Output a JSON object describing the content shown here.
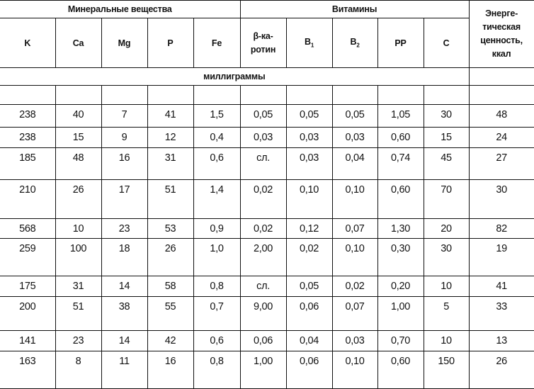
{
  "header": {
    "minerals": "Минеральные вещества",
    "vitamins": "Витамины",
    "energy": "Энерге-тическая ценность, ккал",
    "units": "миллиграммы",
    "columns": [
      {
        "label": "K"
      },
      {
        "label": "Ca"
      },
      {
        "label": "Mg"
      },
      {
        "label": "P"
      },
      {
        "label": "Fe"
      },
      {
        "label": "β-ка-ротин"
      },
      {
        "label": "B",
        "sub": "1"
      },
      {
        "label": "B",
        "sub": "2"
      },
      {
        "label": "PP"
      },
      {
        "label": "C"
      }
    ]
  },
  "rows": [
    [
      "238",
      "40",
      "7",
      "41",
      "1,5",
      "0,05",
      "0,05",
      "0,05",
      "1,05",
      "30",
      "48"
    ],
    [
      "238",
      "15",
      "9",
      "12",
      "0,4",
      "0,03",
      "0,03",
      "0,03",
      "0,60",
      "15",
      "24"
    ],
    [
      "185",
      "48",
      "16",
      "31",
      "0,6",
      "сл.",
      "0,03",
      "0,04",
      "0,74",
      "45",
      "27"
    ],
    [
      "210",
      "26",
      "17",
      "51",
      "1,4",
      "0,02",
      "0,10",
      "0,10",
      "0,60",
      "70",
      "30"
    ],
    [
      "568",
      "10",
      "23",
      "53",
      "0,9",
      "0,02",
      "0,12",
      "0,07",
      "1,30",
      "20",
      "82"
    ],
    [
      "259",
      "100",
      "18",
      "26",
      "1,0",
      "2,00",
      "0,02",
      "0,10",
      "0,30",
      "30",
      "19"
    ],
    [
      "175",
      "31",
      "14",
      "58",
      "0,8",
      "сл.",
      "0,05",
      "0,02",
      "0,20",
      "10",
      "41"
    ],
    [
      "200",
      "51",
      "38",
      "55",
      "0,7",
      "9,00",
      "0,06",
      "0,07",
      "1,00",
      "5",
      "33"
    ],
    [
      "141",
      "23",
      "14",
      "42",
      "0,6",
      "0,06",
      "0,04",
      "0,03",
      "0,70",
      "10",
      "13"
    ],
    [
      "163",
      "8",
      "11",
      "16",
      "0,8",
      "1,00",
      "0,06",
      "0,10",
      "0,60",
      "150",
      "26"
    ]
  ]
}
